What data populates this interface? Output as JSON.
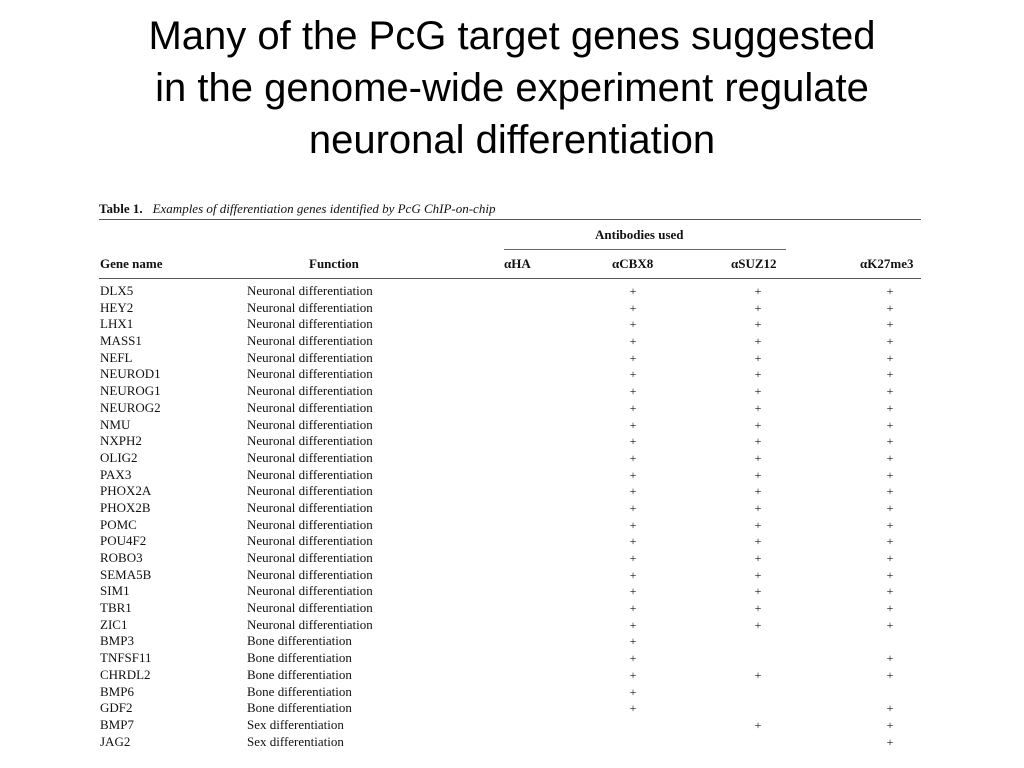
{
  "slide": {
    "title_lines": [
      "Many of the PcG target genes suggested",
      "in the genome-wide experiment regulate",
      "neuronal differentiation"
    ]
  },
  "table": {
    "label": "Table 1.",
    "caption": "Examples of differentiation genes identified by PcG ChIP-on-chip",
    "group_header": "Antibodies used",
    "columns": {
      "gene": "Gene name",
      "function": "Function",
      "ha": "αHA",
      "cbx8": "αCBX8",
      "suz12": "αSUZ12",
      "k27": "αK27me3"
    },
    "rows": [
      {
        "gene": "DLX5",
        "function": "Neuronal differentiation",
        "ha": "",
        "cbx8": "+",
        "suz12": "+",
        "k27": "+"
      },
      {
        "gene": "HEY2",
        "function": "Neuronal differentiation",
        "ha": "",
        "cbx8": "+",
        "suz12": "+",
        "k27": "+"
      },
      {
        "gene": "LHX1",
        "function": "Neuronal differentiation",
        "ha": "",
        "cbx8": "+",
        "suz12": "+",
        "k27": "+"
      },
      {
        "gene": "MASS1",
        "function": "Neuronal differentiation",
        "ha": "",
        "cbx8": "+",
        "suz12": "+",
        "k27": "+"
      },
      {
        "gene": "NEFL",
        "function": "Neuronal differentiation",
        "ha": "",
        "cbx8": "+",
        "suz12": "+",
        "k27": "+"
      },
      {
        "gene": "NEUROD1",
        "function": "Neuronal differentiation",
        "ha": "",
        "cbx8": "+",
        "suz12": "+",
        "k27": "+"
      },
      {
        "gene": "NEUROG1",
        "function": "Neuronal differentiation",
        "ha": "",
        "cbx8": "+",
        "suz12": "+",
        "k27": "+"
      },
      {
        "gene": "NEUROG2",
        "function": "Neuronal differentiation",
        "ha": "",
        "cbx8": "+",
        "suz12": "+",
        "k27": "+"
      },
      {
        "gene": "NMU",
        "function": "Neuronal differentiation",
        "ha": "",
        "cbx8": "+",
        "suz12": "+",
        "k27": "+"
      },
      {
        "gene": "NXPH2",
        "function": "Neuronal differentiation",
        "ha": "",
        "cbx8": "+",
        "suz12": "+",
        "k27": "+"
      },
      {
        "gene": "OLIG2",
        "function": "Neuronal differentiation",
        "ha": "",
        "cbx8": "+",
        "suz12": "+",
        "k27": "+"
      },
      {
        "gene": "PAX3",
        "function": "Neuronal differentiation",
        "ha": "",
        "cbx8": "+",
        "suz12": "+",
        "k27": "+"
      },
      {
        "gene": "PHOX2A",
        "function": "Neuronal differentiation",
        "ha": "",
        "cbx8": "+",
        "suz12": "+",
        "k27": "+"
      },
      {
        "gene": "PHOX2B",
        "function": "Neuronal differentiation",
        "ha": "",
        "cbx8": "+",
        "suz12": "+",
        "k27": "+"
      },
      {
        "gene": "POMC",
        "function": "Neuronal differentiation",
        "ha": "",
        "cbx8": "+",
        "suz12": "+",
        "k27": "+"
      },
      {
        "gene": "POU4F2",
        "function": "Neuronal differentiation",
        "ha": "",
        "cbx8": "+",
        "suz12": "+",
        "k27": "+"
      },
      {
        "gene": "ROBO3",
        "function": "Neuronal differentiation",
        "ha": "",
        "cbx8": "+",
        "suz12": "+",
        "k27": "+"
      },
      {
        "gene": "SEMA5B",
        "function": "Neuronal differentiation",
        "ha": "",
        "cbx8": "+",
        "suz12": "+",
        "k27": "+"
      },
      {
        "gene": "SIM1",
        "function": "Neuronal differentiation",
        "ha": "",
        "cbx8": "+",
        "suz12": "+",
        "k27": "+"
      },
      {
        "gene": "TBR1",
        "function": "Neuronal differentiation",
        "ha": "",
        "cbx8": "+",
        "suz12": "+",
        "k27": "+"
      },
      {
        "gene": "ZIC1",
        "function": "Neuronal differentiation",
        "ha": "",
        "cbx8": "+",
        "suz12": "+",
        "k27": "+"
      },
      {
        "gene": "BMP3",
        "function": "Bone differentiation",
        "ha": "",
        "cbx8": "+",
        "suz12": "",
        "k27": ""
      },
      {
        "gene": "TNFSF11",
        "function": "Bone differentiation",
        "ha": "",
        "cbx8": "+",
        "suz12": "",
        "k27": "+"
      },
      {
        "gene": "CHRDL2",
        "function": "Bone differentiation",
        "ha": "",
        "cbx8": "+",
        "suz12": "+",
        "k27": "+"
      },
      {
        "gene": "BMP6",
        "function": "Bone differentiation",
        "ha": "",
        "cbx8": "+",
        "suz12": "",
        "k27": ""
      },
      {
        "gene": "GDF2",
        "function": "Bone differentiation",
        "ha": "",
        "cbx8": "+",
        "suz12": "",
        "k27": "+"
      },
      {
        "gene": "BMP7",
        "function": "Sex differentiation",
        "ha": "",
        "cbx8": "",
        "suz12": "+",
        "k27": "+"
      },
      {
        "gene": "JAG2",
        "function": "Sex differentiation",
        "ha": "",
        "cbx8": "",
        "suz12": "",
        "k27": "+"
      }
    ]
  }
}
